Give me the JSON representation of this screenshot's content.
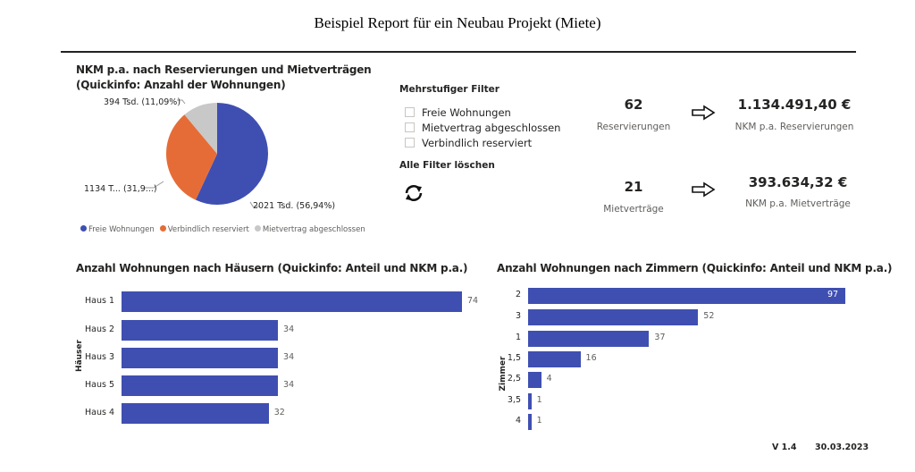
{
  "report": {
    "title": "Beispiel Report für ein Neubau Projekt (Miete)",
    "version": "V 1.4",
    "date": "30.03.2023"
  },
  "filter": {
    "heading": "Mehrstufiger Filter",
    "options": [
      {
        "label": "Freie Wohnungen",
        "checked": false
      },
      {
        "label": "Mietvertrag abgeschlossen",
        "checked": false
      },
      {
        "label": "Verbindlich reserviert",
        "checked": false
      }
    ],
    "clear_label": "Alle Filter löschen",
    "clear_icon": "refresh-icon"
  },
  "kpis": {
    "reservations": {
      "value": "62",
      "label": "Reservierungen",
      "amount": "1.134.491,40 €",
      "amount_label": "NKM p.a. Reservierungen"
    },
    "contracts": {
      "value": "21",
      "label": "Mietverträge",
      "amount": "393.634,32 €",
      "amount_label": "NKM p.a. Mietverträge"
    },
    "arrow_icon": "arrow-right-outline-icon"
  },
  "chart_data": [
    {
      "type": "pie",
      "title": "NKM p.a. nach Reservierungen und Mietverträgen",
      "subtitle": "(Quickinfo: Anzahl der Wohnungen)",
      "slices": [
        {
          "name": "Freie Wohnungen",
          "value": 56.94,
          "label": "2021 Tsd. (56,94%)",
          "color": "#3f4fb1"
        },
        {
          "name": "Verbindlich reserviert",
          "value": 31.97,
          "label": "1134 T... (31,9...)",
          "color": "#e66c37"
        },
        {
          "name": "Mietvertrag abgeschlossen",
          "value": 11.09,
          "label": "394 Tsd. (11,09%)",
          "color": "#c8c8c8"
        }
      ],
      "legend": "bottom"
    },
    {
      "type": "bar",
      "orientation": "horizontal",
      "title": "Anzahl Wohnungen nach Häusern (Quickinfo: Anteil und NKM p.a.)",
      "ylabel": "Häuser",
      "categories": [
        "Haus 1",
        "Haus 2",
        "Haus 3",
        "Haus 5",
        "Haus 4"
      ],
      "values": [
        74,
        34,
        34,
        34,
        32
      ],
      "color": "#3f4fb1"
    },
    {
      "type": "bar",
      "orientation": "horizontal",
      "title": "Anzahl Wohnungen nach Zimmern (Quickinfo: Anteil und NKM p.a.)",
      "ylabel": "Zimmer",
      "categories": [
        "2",
        "3",
        "1",
        "1,5",
        "2,5",
        "3,5",
        "4"
      ],
      "values": [
        97,
        52,
        37,
        16,
        4,
        1,
        1
      ],
      "color": "#3f4fb1"
    }
  ]
}
